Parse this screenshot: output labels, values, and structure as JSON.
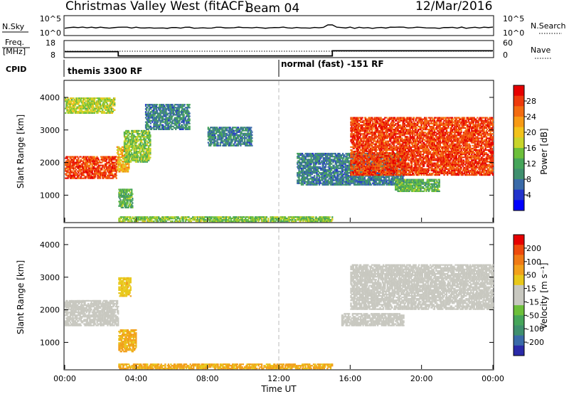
{
  "header": {
    "title": "Christmas Valley West (fitACF)",
    "beam": "Beam 04",
    "date": "12/Mar/2016"
  },
  "panels": {
    "nsky_label": "N.Sky",
    "nsearch_label": "N.Search",
    "nsky_ticks": [
      "10^5",
      "10^0"
    ],
    "nsearch_ticks": [
      "10^5",
      "10^0"
    ],
    "freq_label": "Freq.",
    "freq_unit": "[MHz]",
    "freq_ticks": [
      "18",
      "8"
    ],
    "nave_label": "Nave",
    "nave_ticks": [
      "60",
      "0"
    ],
    "cpid_label": "CPID",
    "cpid_segments": [
      "themis 3300 RF",
      "normal (fast) -151 RF"
    ]
  },
  "axes": {
    "ylabel": "Slant Range [km]",
    "xlabel": "Time UT",
    "yticks": [
      "4000",
      "3000",
      "2000",
      "1000"
    ],
    "xticks": [
      "00:00",
      "04:00",
      "08:00",
      "12:00",
      "16:00",
      "20:00",
      "00:00"
    ]
  },
  "colorbars": {
    "power": {
      "label": "Power [dB]",
      "ticks": [
        "28",
        "24",
        "20",
        "16",
        "12",
        "8",
        "4"
      ],
      "colors": [
        "#0000ff",
        "#2233cc",
        "#3a6aa8",
        "#3f8f6e",
        "#46a55a",
        "#6cbf3a",
        "#c8d42a",
        "#f2c21a",
        "#f79a14",
        "#f36b10",
        "#ee3a0c",
        "#e60000"
      ]
    },
    "velocity": {
      "label": "Velocity [m s⁻¹]",
      "ticks": [
        "200",
        "100",
        "50",
        "15",
        "-15",
        "-50",
        "-100",
        "-200"
      ],
      "colors": [
        "#2a2aa8",
        "#3a6aa8",
        "#3f8f6e",
        "#46a55a",
        "#6cbf3a",
        "#c8c8c0",
        "#c8c8c0",
        "#e8c81a",
        "#f2a01a",
        "#f07a14",
        "#ee4a0c",
        "#e60000"
      ]
    }
  },
  "chart_data": {
    "type": "heatmap",
    "x_unit": "hours UT",
    "xlim": [
      0,
      24
    ],
    "ylim": [
      180,
      4500
    ],
    "ylabel": "Slant Range [km]",
    "xlabel": "Time UT",
    "cpid_change_hour": 12.0,
    "freq_mhz": [
      {
        "t0": 0.0,
        "t1": 3.0,
        "value": 11.5
      },
      {
        "t0": 3.0,
        "t1": 15.0,
        "value": 9.0
      },
      {
        "t0": 15.0,
        "t1": 24.0,
        "value": 12.0
      }
    ],
    "power_regions": [
      {
        "t0": 0.0,
        "t1": 2.9,
        "r0": 1500,
        "r1": 2200,
        "power": 26
      },
      {
        "t0": 2.9,
        "t1": 3.6,
        "r0": 1700,
        "r1": 2500,
        "power": 20
      },
      {
        "t0": 3.3,
        "t1": 4.8,
        "r0": 2000,
        "r1": 3000,
        "power": 14
      },
      {
        "t0": 3.0,
        "t1": 3.8,
        "r0": 600,
        "r1": 1200,
        "power": 12
      },
      {
        "t0": 0.0,
        "t1": 2.8,
        "r0": 3500,
        "r1": 4000,
        "power": 16
      },
      {
        "t0": 4.5,
        "t1": 7.0,
        "r0": 3000,
        "r1": 3800,
        "power": 8
      },
      {
        "t0": 8.0,
        "t1": 10.5,
        "r0": 2500,
        "r1": 3100,
        "power": 8
      },
      {
        "t0": 13.0,
        "t1": 19.0,
        "r0": 1300,
        "r1": 2300,
        "power": 8
      },
      {
        "t0": 16.0,
        "t1": 24.0,
        "r0": 1600,
        "r1": 3400,
        "power": 26
      },
      {
        "t0": 18.5,
        "t1": 21.0,
        "r0": 1100,
        "r1": 1500,
        "power": 12
      },
      {
        "t0": 3.0,
        "t1": 15.0,
        "r0": 180,
        "r1": 350,
        "power": 14
      }
    ],
    "velocity_regions": [
      {
        "t0": 0.0,
        "t1": 3.0,
        "r0": 1500,
        "r1": 2300,
        "velocity": 0
      },
      {
        "t0": 3.0,
        "t1": 3.7,
        "r0": 2400,
        "r1": 3000,
        "velocity": -40
      },
      {
        "t0": 3.0,
        "t1": 4.0,
        "r0": 700,
        "r1": 1400,
        "velocity": -60
      },
      {
        "t0": 16.0,
        "t1": 24.0,
        "r0": 2000,
        "r1": 3400,
        "velocity": 0
      },
      {
        "t0": 15.5,
        "t1": 19.0,
        "r0": 1500,
        "r1": 1900,
        "velocity": 0
      },
      {
        "t0": 3.0,
        "t1": 15.0,
        "r0": 180,
        "r1": 350,
        "velocity": -60
      }
    ]
  }
}
